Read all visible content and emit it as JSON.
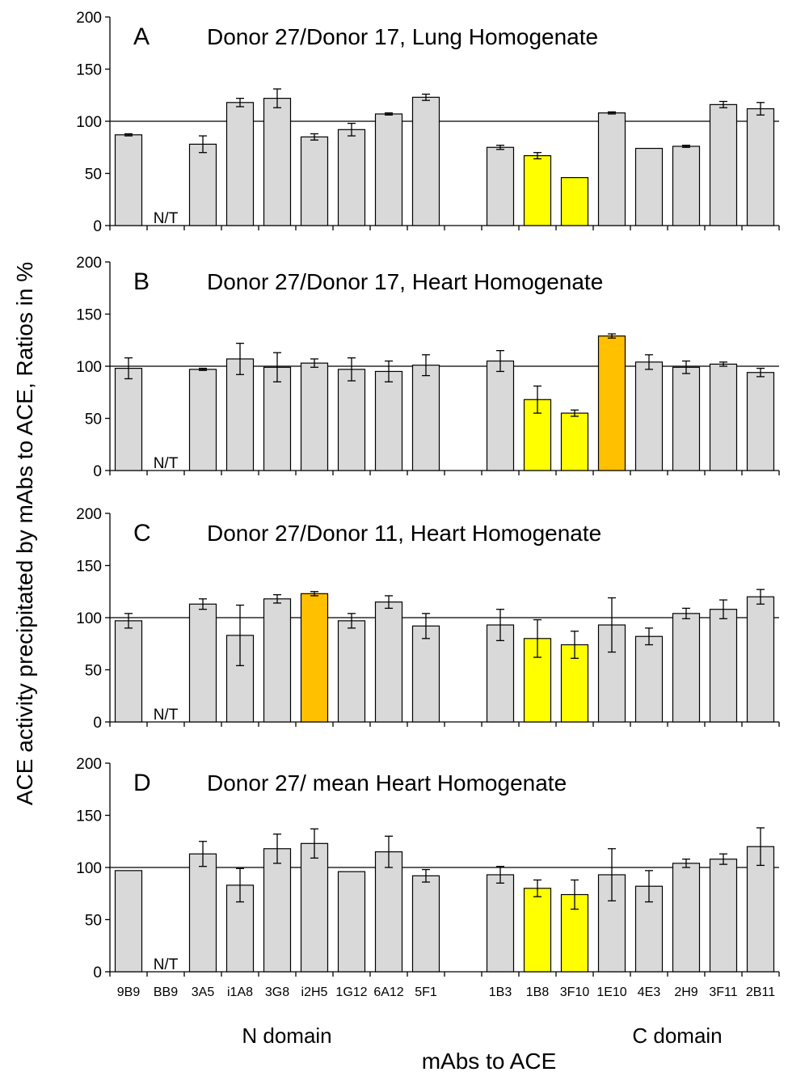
{
  "chart_data": {
    "type": "bar",
    "categories": [
      "9B9",
      "BB9",
      "3A5",
      "i1A8",
      "3G8",
      "i2H5",
      "1G12",
      "6A12",
      "5F1",
      "",
      "1B3",
      "1B8",
      "3F10",
      "1E10",
      "4E3",
      "2H9",
      "3F11",
      "2B11"
    ],
    "ylim": [
      0,
      200
    ],
    "yticks": [
      0,
      50,
      100,
      150,
      200
    ],
    "reference_line": 100,
    "ylabel": "ACE activity precipitated by mAbs to ACE, Ratios in %",
    "xlabel": "mAbs to ACE",
    "group_labels": [
      "N domain",
      "C domain"
    ],
    "na_label": "N/T",
    "colors": {
      "default": "#d9d9d9",
      "yellow": "#ffff00",
      "orange": "#ffc000",
      "edge": "#000000"
    },
    "panels": [
      {
        "letter": "A",
        "title": "Donor 27/Donor 17, Lung Homogenate",
        "values": [
          87,
          null,
          78,
          118,
          122,
          85,
          92,
          107,
          123,
          null,
          75,
          67,
          46,
          108,
          74,
          76,
          116,
          112
        ],
        "errors": [
          1,
          null,
          8,
          4,
          9,
          3,
          6,
          1,
          3,
          null,
          2,
          3,
          0,
          1,
          0,
          1,
          3,
          6
        ],
        "highlights": {
          "11": "yellow",
          "12": "yellow"
        }
      },
      {
        "letter": "B",
        "title": "Donor 27/Donor 17, Heart Homogenate",
        "values": [
          98,
          null,
          97,
          107,
          99,
          103,
          97,
          95,
          101,
          null,
          105,
          68,
          55,
          129,
          104,
          99,
          102,
          94
        ],
        "errors": [
          10,
          null,
          1,
          15,
          14,
          4,
          11,
          10,
          10,
          null,
          10,
          13,
          3,
          2,
          7,
          6,
          2,
          4
        ],
        "highlights": {
          "11": "yellow",
          "12": "yellow",
          "13": "orange"
        }
      },
      {
        "letter": "C",
        "title": "Donor 27/Donor 11, Heart Homogenate",
        "values": [
          97,
          null,
          113,
          83,
          118,
          123,
          97,
          115,
          92,
          null,
          93,
          80,
          74,
          93,
          82,
          104,
          108,
          120
        ],
        "errors": [
          7,
          null,
          5,
          29,
          4,
          2,
          7,
          6,
          12,
          null,
          15,
          18,
          13,
          26,
          8,
          5,
          9,
          7
        ],
        "highlights": {
          "5": "orange",
          "11": "yellow",
          "12": "yellow"
        }
      },
      {
        "letter": "D",
        "title": "Donor 27/ mean Heart Homogenate",
        "values": [
          97,
          null,
          113,
          83,
          118,
          123,
          96,
          115,
          92,
          null,
          93,
          80,
          74,
          93,
          82,
          104,
          108,
          120
        ],
        "errors": [
          0,
          null,
          12,
          16,
          14,
          14,
          0,
          15,
          6,
          null,
          8,
          8,
          14,
          25,
          15,
          4,
          5,
          18
        ],
        "highlights": {
          "11": "yellow",
          "12": "yellow"
        }
      }
    ]
  }
}
